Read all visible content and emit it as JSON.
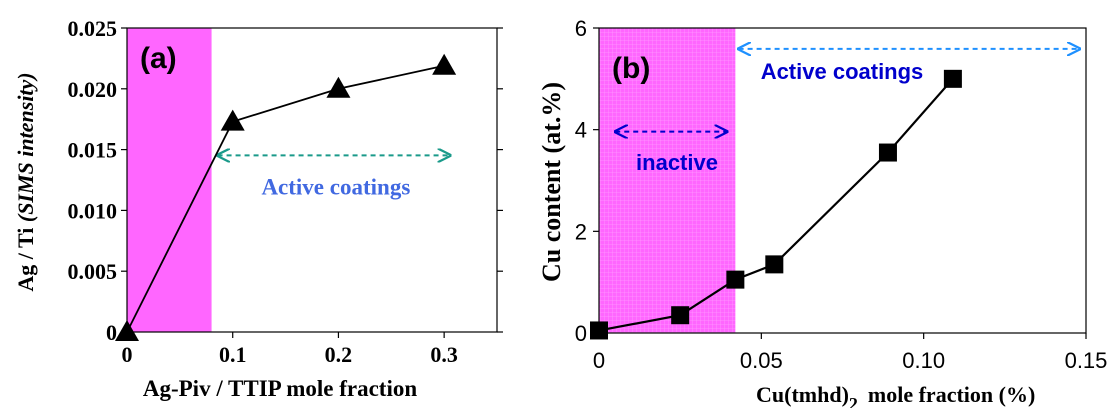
{
  "chart_data": [
    {
      "panel": "(a)",
      "type": "line",
      "xlabel": "Ag-Piv / TTIP mole fraction",
      "ylabel_prefix": "Ag / Ti ",
      "ylabel_italic": "(SIMS intensity)",
      "xlim": [
        0,
        0.35
      ],
      "ylim": [
        0,
        0.025
      ],
      "x_ticks": [
        "0",
        "0.1",
        "0.2",
        "0.3"
      ],
      "y_ticks": [
        "0",
        "0.005",
        "0.010",
        "0.015",
        "0.020",
        "0.025"
      ],
      "marker": "triangle",
      "series": [
        {
          "x": [
            0,
            0.1,
            0.2,
            0.3
          ],
          "y": [
            0,
            0.0173,
            0.02,
            0.0219
          ]
        }
      ],
      "shaded_region": {
        "x": [
          0,
          0.08
        ],
        "color": "#ff66ff"
      },
      "annotation": {
        "text": "Active coatings",
        "arrow_x": [
          0.08,
          0.3
        ],
        "arrow_y": 0.0128,
        "color": "#1a9a8a",
        "text_color": "#4169e1"
      }
    },
    {
      "panel": "(b)",
      "type": "line",
      "xlabel_main": "Cu(tmhd)",
      "xlabel_sub": "2",
      "xlabel_rest": "mole fraction (%)",
      "ylabel": "Cu content (at.%)",
      "xlim": [
        0,
        0.15
      ],
      "ylim": [
        0,
        6
      ],
      "x_ticks": [
        "0",
        "0.05",
        "0.10",
        "0.15"
      ],
      "y_ticks": [
        "0",
        "2",
        "4",
        "6"
      ],
      "marker": "square",
      "series": [
        {
          "x": [
            0,
            0.025,
            0.042,
            0.054,
            0.089,
            0.109
          ],
          "y": [
            0.05,
            0.35,
            1.05,
            1.35,
            3.55,
            5.0
          ]
        }
      ],
      "shaded_region": {
        "x": [
          0,
          0.042
        ],
        "color": "#ff66ff"
      },
      "annotations": [
        {
          "text": "inactive",
          "arrow_x": [
            0.005,
            0.04
          ],
          "arrow_y": 4.0,
          "color": "#0000cc"
        },
        {
          "text": "Active coatings",
          "arrow_x": [
            0.043,
            0.148
          ],
          "arrow_y": 5.55,
          "color": "#1e90ff",
          "text_color": "#0000cc"
        }
      ]
    }
  ]
}
